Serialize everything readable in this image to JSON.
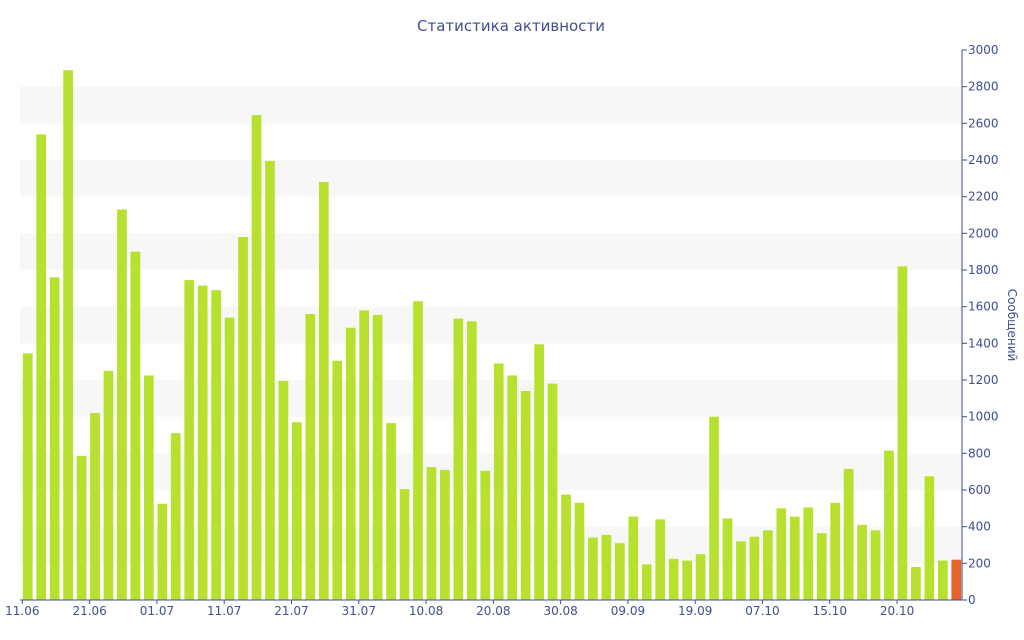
{
  "chart_data": {
    "type": "bar",
    "title": "Статистика активности",
    "ylabel": "Сообщений",
    "xlabel": "",
    "ylim": [
      0,
      3000
    ],
    "yticks": [
      0,
      200,
      400,
      600,
      800,
      1000,
      1200,
      1400,
      1600,
      1800,
      2000,
      2200,
      2400,
      2600,
      2800,
      3000
    ],
    "y_axis_position": "right",
    "grid": "alternating horizontal bands",
    "x_tick_labels": [
      {
        "label": "11.06",
        "index": 0
      },
      {
        "label": "21.06",
        "index": 5
      },
      {
        "label": "01.07",
        "index": 10
      },
      {
        "label": "11.07",
        "index": 15
      },
      {
        "label": "21.07",
        "index": 20
      },
      {
        "label": "31.07",
        "index": 25
      },
      {
        "label": "10.08",
        "index": 30
      },
      {
        "label": "20.08",
        "index": 35
      },
      {
        "label": "30.08",
        "index": 40
      },
      {
        "label": "09.09",
        "index": 45
      },
      {
        "label": "19.09",
        "index": 50
      },
      {
        "label": "07.10",
        "index": 55
      },
      {
        "label": "15.10",
        "index": 60
      },
      {
        "label": "20.10",
        "index": 65
      }
    ],
    "values": [
      1345,
      2540,
      1760,
      2890,
      785,
      1020,
      1250,
      2130,
      1900,
      1225,
      525,
      910,
      1745,
      1715,
      1690,
      1540,
      1980,
      2645,
      2395,
      1195,
      970,
      1560,
      2280,
      1305,
      1485,
      1580,
      1555,
      965,
      605,
      1630,
      725,
      710,
      1535,
      1520,
      705,
      1290,
      1225,
      1140,
      1395,
      1180,
      575,
      530,
      340,
      355,
      310,
      455,
      195,
      440,
      225,
      215,
      250,
      1000,
      445,
      320,
      345,
      380,
      500,
      455,
      505,
      365,
      530,
      715,
      410,
      380,
      815,
      1820,
      180,
      675,
      215,
      220
    ],
    "highlight_last": true,
    "colors": {
      "bar": "#b8e02e",
      "bar_last": "#e8632c",
      "axis": "#3f4f8f",
      "band": "#f7f7f7",
      "text": "#3f4f8f"
    }
  }
}
